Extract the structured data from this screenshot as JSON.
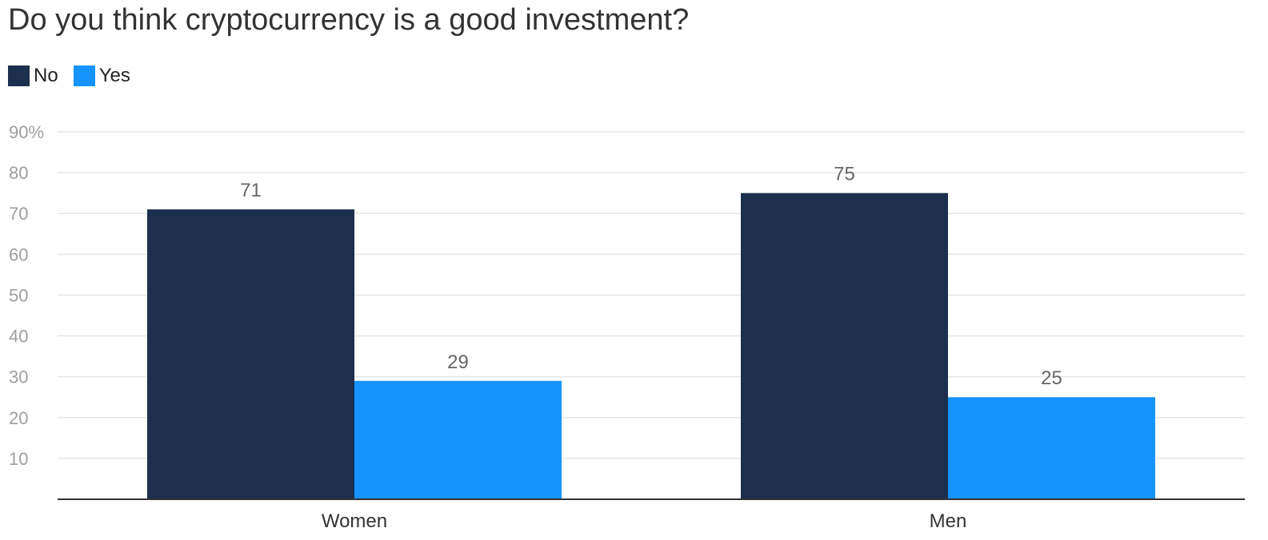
{
  "chart_data": {
    "type": "bar",
    "title": "Do you think cryptocurrency is a good investment?",
    "categories": [
      "Women",
      "Men"
    ],
    "series": [
      {
        "name": "No",
        "values": [
          71,
          75
        ],
        "color": "#1c2f4d"
      },
      {
        "name": "Yes",
        "values": [
          29,
          25
        ],
        "color": "#1793fc"
      }
    ],
    "ylim": [
      0,
      90
    ],
    "yticks": [
      {
        "value": 10,
        "label": "10"
      },
      {
        "value": 20,
        "label": "20"
      },
      {
        "value": 30,
        "label": "30"
      },
      {
        "value": 40,
        "label": "40"
      },
      {
        "value": 50,
        "label": "50"
      },
      {
        "value": 60,
        "label": "60"
      },
      {
        "value": 70,
        "label": "70"
      },
      {
        "value": 80,
        "label": "80"
      },
      {
        "value": 90,
        "label": "90%"
      }
    ],
    "grid": true,
    "legend": "top-left",
    "data_labels": true
  }
}
